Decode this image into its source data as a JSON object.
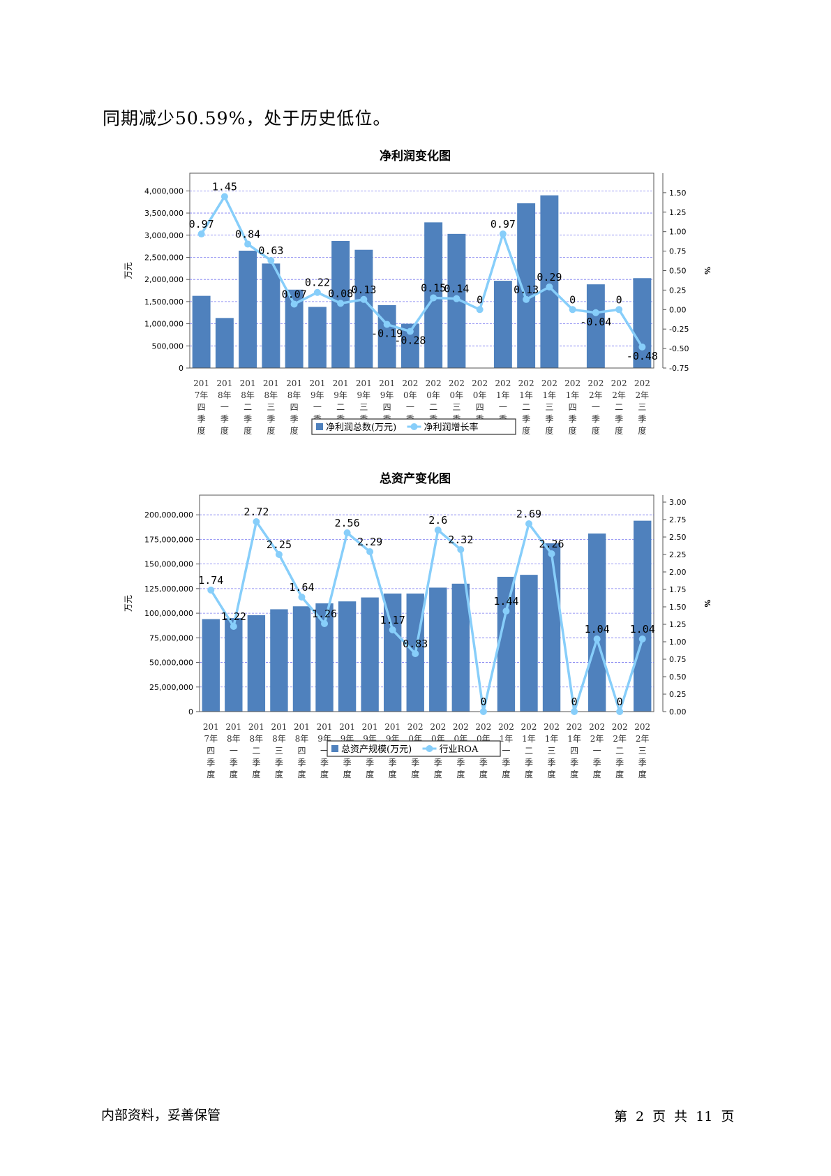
{
  "page": {
    "intro_text": "同期减少50.59%，处于历史低位。",
    "footer_left": "内部资料，妥善保管",
    "footer_page": {
      "prefix": "第",
      "current": "2",
      "mid": "页",
      "total_prefix": "共",
      "total": "11",
      "suffix": "页"
    }
  },
  "colors": {
    "bar": "#4f81bd",
    "line": "#87cefa",
    "grid": "#7b7bf0"
  },
  "chart_data": [
    {
      "type": "bar",
      "title": "净利润变化图",
      "ylabel": "万元",
      "y2label": "%",
      "ylim": [
        0,
        4400000
      ],
      "y2lim": [
        -0.75,
        1.75
      ],
      "yticks": [
        0,
        500000,
        1000000,
        1500000,
        2000000,
        2500000,
        3000000,
        3500000,
        4000000
      ],
      "ytick_labels": [
        "0",
        "500,000",
        "1,000,000",
        "1,500,000",
        "2,000,000",
        "2,500,000",
        "3,000,000",
        "3,500,000",
        "4,000,000"
      ],
      "y2ticks": [
        -0.75,
        -0.5,
        -0.25,
        0,
        0.25,
        0.5,
        0.75,
        1.0,
        1.25,
        1.5
      ],
      "y2tick_labels": [
        "-0.75",
        "-0.50",
        "-0.25",
        "0.00",
        "0.25",
        "0.50",
        "0.75",
        "1.00",
        "1.25",
        "1.50"
      ],
      "grid": true,
      "legend": "bottom",
      "categories": [
        "2017年四季度",
        "2018年一季度",
        "2018年二季度",
        "2018年三季度",
        "2018年四季度",
        "2019年一季度",
        "2019年二季度",
        "2019年三季度",
        "2019年四季度",
        "2020年一季度",
        "2020年二季度",
        "2020年三季度",
        "2020年四季度",
        "2021年一季度",
        "2021年二季度",
        "2021年三季度",
        "2021年四季度",
        "2022年一季度",
        "2022年二季度",
        "2022年三季度"
      ],
      "series": [
        {
          "name": "净利润总数(万元)",
          "kind": "bar",
          "axis": "left",
          "values": [
            1630000,
            1130000,
            2650000,
            2360000,
            1770000,
            1380000,
            2870000,
            2670000,
            1420000,
            1000000,
            3290000,
            3030000,
            0,
            1970000,
            3720000,
            3900000,
            0,
            1890000,
            0,
            2030000
          ]
        },
        {
          "name": "净利润增长率",
          "kind": "line",
          "axis": "right",
          "values": [
            0.97,
            1.45,
            0.84,
            0.63,
            0.07,
            0.22,
            0.08,
            0.13,
            -0.19,
            -0.28,
            0.15,
            0.14,
            0,
            0.97,
            0.13,
            0.29,
            0,
            -0.04,
            0,
            -0.48
          ],
          "labels": [
            "0.97",
            "1.45",
            "0.84",
            "0.63",
            "0.07",
            "0.22",
            "0.08",
            "0.13",
            "-0.19",
            "-0.28",
            "0.15",
            "0.14",
            "0",
            "0.97",
            "0.13",
            "0.29",
            "0",
            "-0.04",
            "0",
            "-0.48"
          ]
        }
      ]
    },
    {
      "type": "bar",
      "title": "总资产变化图",
      "ylabel": "万元",
      "y2label": "%",
      "ylim": [
        0,
        220000000
      ],
      "y2lim": [
        0,
        3.1
      ],
      "yticks": [
        0,
        25000000,
        50000000,
        75000000,
        100000000,
        125000000,
        150000000,
        175000000,
        200000000
      ],
      "ytick_labels": [
        "0",
        "25,000,000",
        "50,000,000",
        "75,000,000",
        "100,000,000",
        "125,000,000",
        "150,000,000",
        "175,000,000",
        "200,000,000"
      ],
      "y2ticks": [
        0,
        0.25,
        0.5,
        0.75,
        1.0,
        1.25,
        1.5,
        1.75,
        2.0,
        2.25,
        2.5,
        2.75,
        3.0
      ],
      "y2tick_labels": [
        "0.00",
        "0.25",
        "0.50",
        "0.75",
        "1.00",
        "1.25",
        "1.50",
        "1.75",
        "2.00",
        "2.25",
        "2.50",
        "2.75",
        "3.00"
      ],
      "grid": true,
      "legend": "bottom",
      "categories": [
        "2017年四季度",
        "2018年一季度",
        "2018年二季度",
        "2018年三季度",
        "2018年四季度",
        "2019年一季度",
        "2019年二季度",
        "2019年三季度",
        "2019年四季度",
        "2020年一季度",
        "2020年二季度",
        "2020年三季度",
        "2020年四季度",
        "2021年一季度",
        "2021年二季度",
        "2021年三季度",
        "2021年四季度",
        "2022年一季度",
        "2022年二季度",
        "2022年三季度"
      ],
      "series": [
        {
          "name": "总资产规模(万元)",
          "kind": "bar",
          "axis": "left",
          "values": [
            94000000,
            95000000,
            98000000,
            104000000,
            107000000,
            110000000,
            112000000,
            116000000,
            120000000,
            120000000,
            126000000,
            130000000,
            0,
            137000000,
            139000000,
            171000000,
            0,
            181000000,
            0,
            194000000
          ]
        },
        {
          "name": "行业ROA",
          "kind": "line",
          "axis": "right",
          "values": [
            1.74,
            1.22,
            2.72,
            2.25,
            1.64,
            1.26,
            2.56,
            2.29,
            1.17,
            0.83,
            2.6,
            2.32,
            0,
            1.44,
            2.69,
            2.26,
            0,
            1.04,
            0,
            1.04
          ],
          "labels": [
            "1.74",
            "1.22",
            "2.72",
            "2.25",
            "1.64",
            "1.26",
            "2.56",
            "2.29",
            "1.17",
            "0.83",
            "2.6",
            "2.32",
            "0",
            "1.44",
            "2.69",
            "2.26",
            "0",
            "1.04",
            "0",
            "1.04"
          ]
        }
      ]
    }
  ]
}
